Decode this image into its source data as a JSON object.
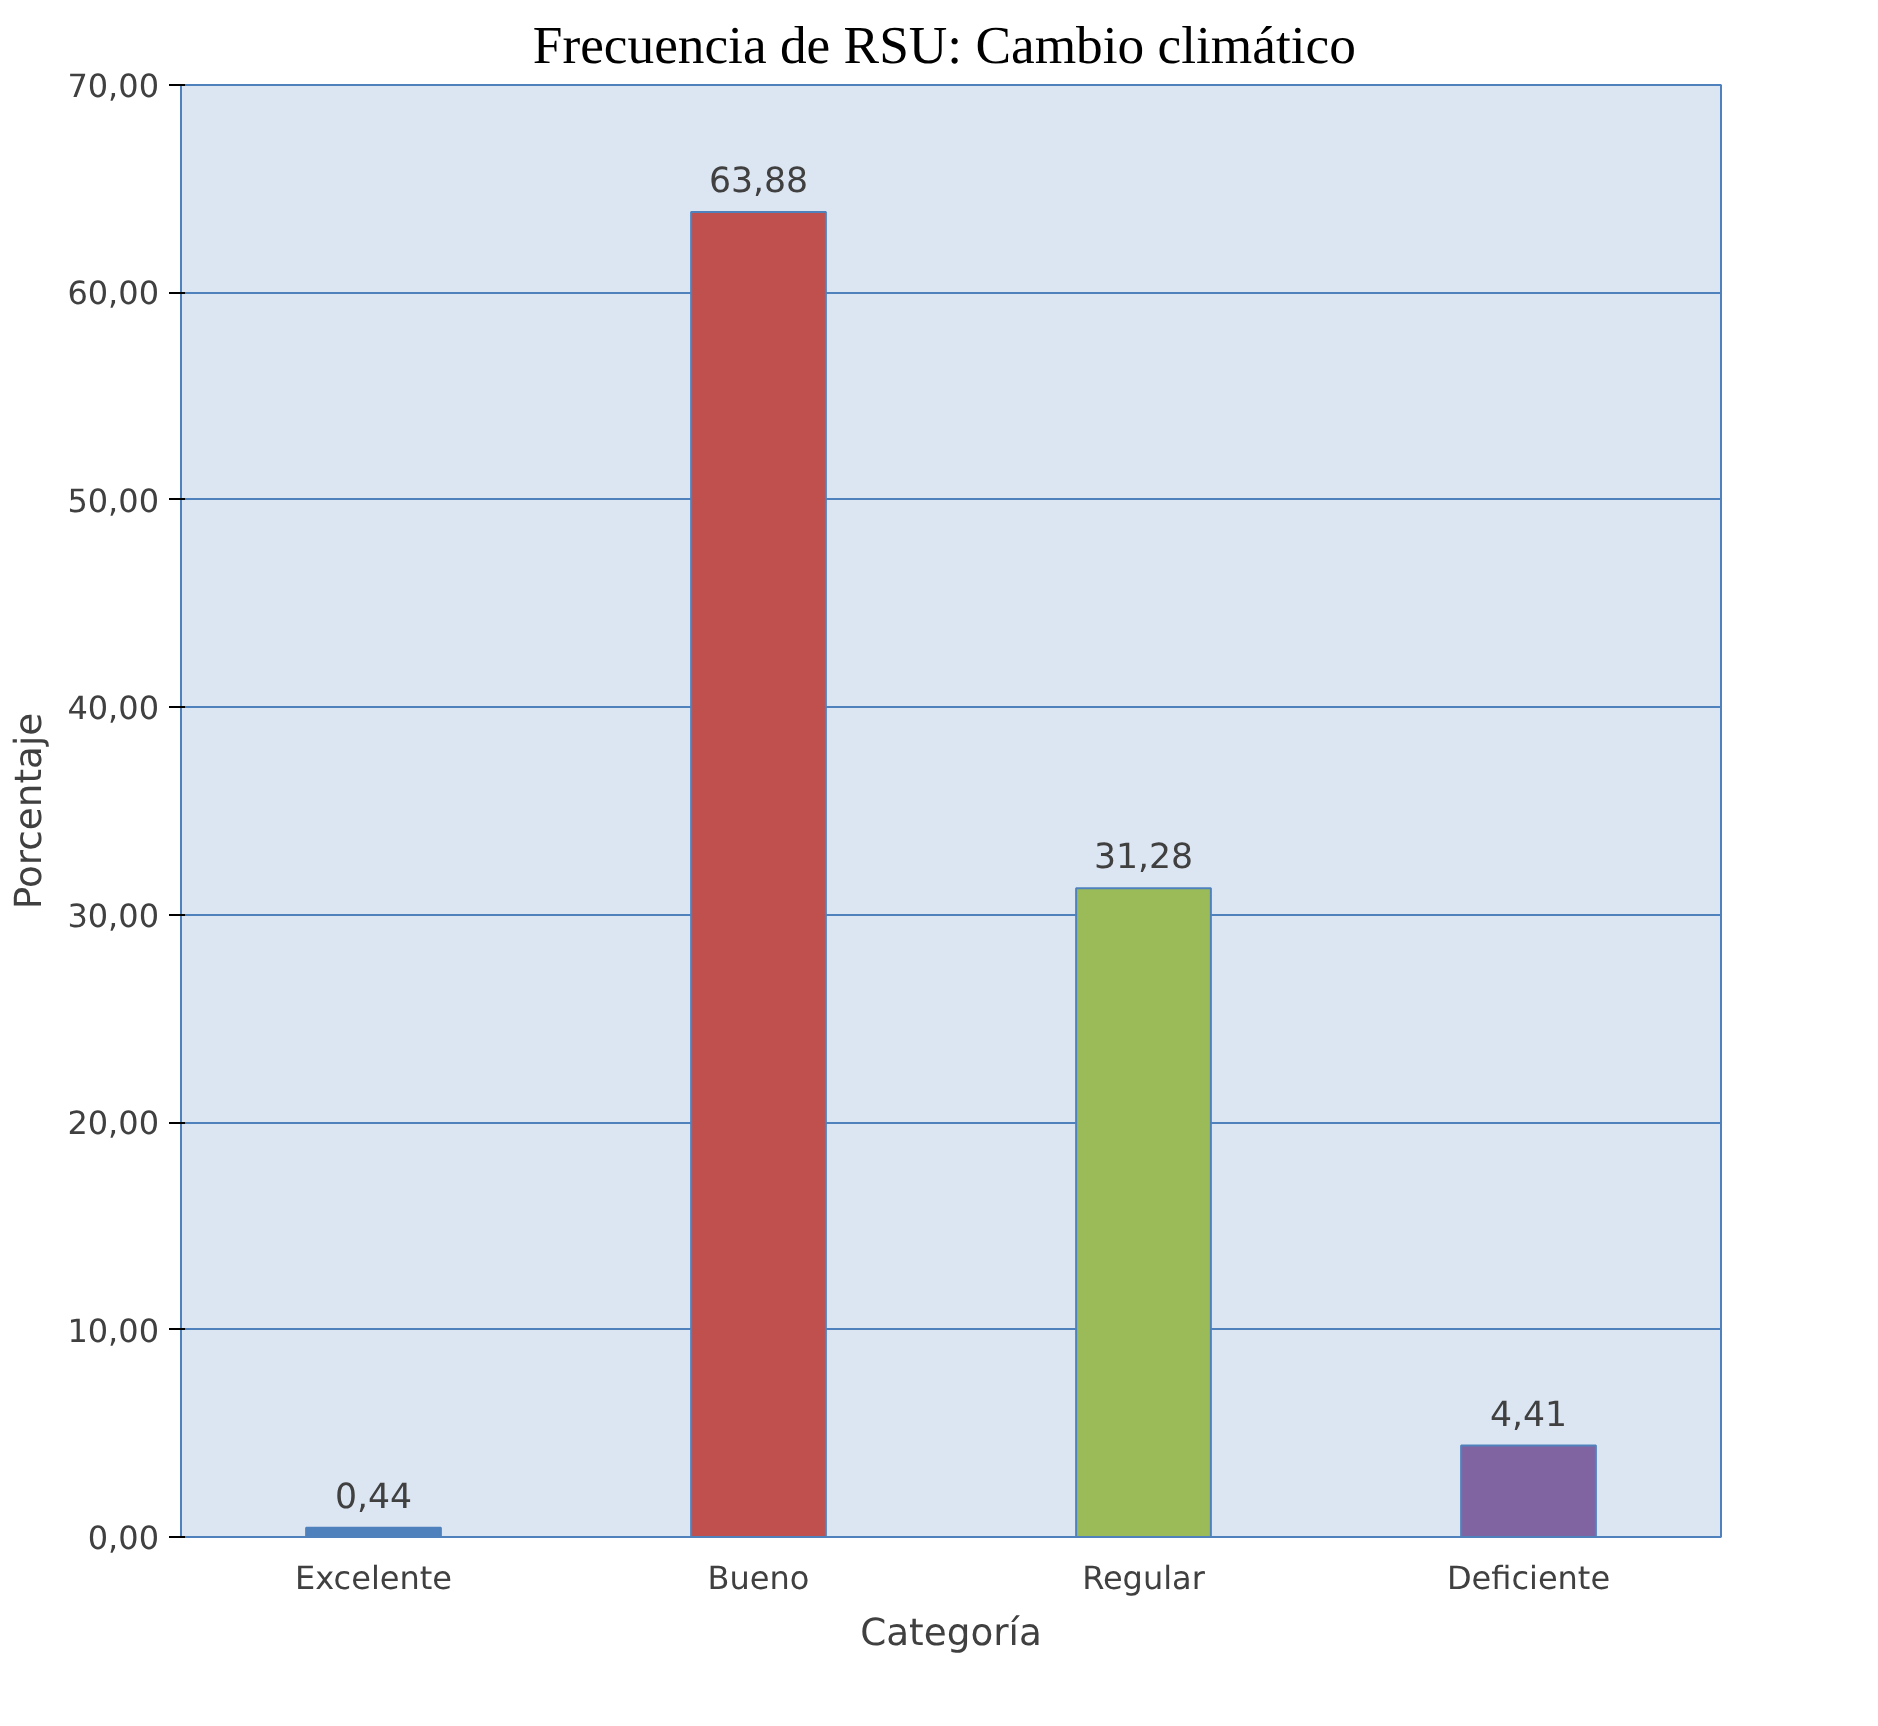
{
  "chart_data": {
    "type": "bar",
    "title": "Frecuencia  de RSU: Cambio climático",
    "xlabel": "Categoría",
    "ylabel": "Porcentaje",
    "categories": [
      "Excelente",
      "Bueno",
      "Regular",
      "Deficiente"
    ],
    "values": [
      0.44,
      63.88,
      31.28,
      4.41
    ],
    "colors": [
      "#4f81bd",
      "#c0504d",
      "#9bbb59",
      "#8064a2"
    ],
    "value_labels": [
      "0,44",
      "63,88",
      "31,28",
      "4,41"
    ],
    "ylim": [
      0,
      70
    ],
    "yticks": [
      {
        "value": 0,
        "label": "0,00"
      },
      {
        "value": 10,
        "label": "10,00"
      },
      {
        "value": 20,
        "label": "20,00"
      },
      {
        "value": 30,
        "label": "30,00"
      },
      {
        "value": 40,
        "label": "40,00"
      },
      {
        "value": 50,
        "label": "50,00"
      },
      {
        "value": 60,
        "label": "60,00"
      },
      {
        "value": 70,
        "label": "70,00"
      }
    ],
    "grid": "y"
  }
}
